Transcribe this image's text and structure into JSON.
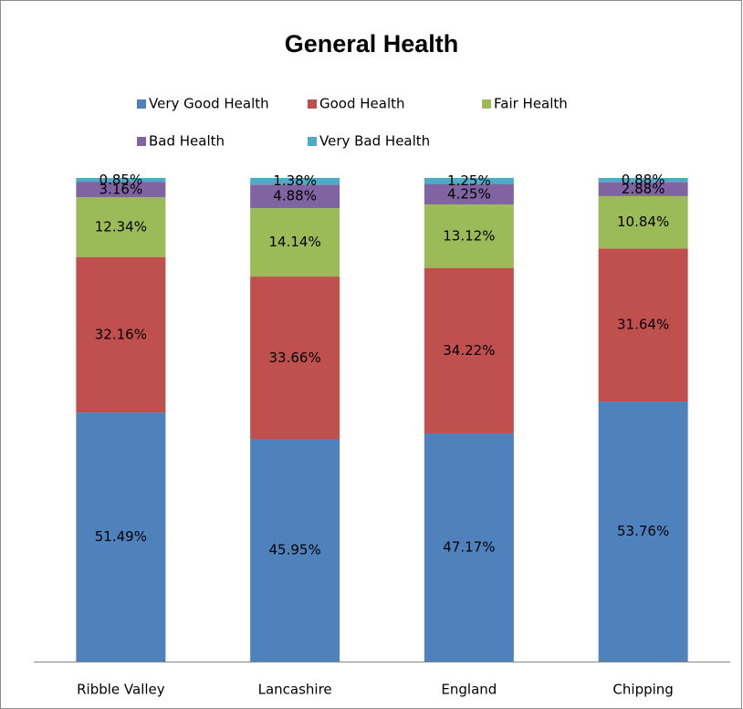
{
  "chart_data": {
    "type": "bar",
    "stacked": true,
    "title": "General Health",
    "categories": [
      "Ribble Valley",
      "Lancashire",
      "England",
      "Chipping"
    ],
    "series": [
      {
        "name": "Very Good Health",
        "color": "#4f81bd",
        "values": [
          51.49,
          45.95,
          47.17,
          53.76
        ],
        "value_labels": [
          "51.49%",
          "45.95%",
          "47.17%",
          "53.76%"
        ]
      },
      {
        "name": "Good Health",
        "color": "#c0504d",
        "values": [
          32.16,
          33.66,
          34.22,
          31.64
        ],
        "value_labels": [
          "32.16%",
          "33.66%",
          "34.22%",
          "31.64%"
        ]
      },
      {
        "name": "Fair Health",
        "color": "#9bbb59",
        "values": [
          12.34,
          14.14,
          13.12,
          10.84
        ],
        "value_labels": [
          "12.34%",
          "14.14%",
          "13.12%",
          "10.84%"
        ]
      },
      {
        "name": "Bad Health",
        "color": "#8064a2",
        "values": [
          3.16,
          4.88,
          4.25,
          2.88
        ],
        "value_labels": [
          "3.16%",
          "4.88%",
          "4.25%",
          "2.88%"
        ]
      },
      {
        "name": "Very Bad Health",
        "color": "#4bacc6",
        "values": [
          0.85,
          1.38,
          1.25,
          0.88
        ],
        "value_labels": [
          "0.85%",
          "1.38%",
          "1.25%",
          "0.88%"
        ]
      }
    ],
    "ylim": [
      0,
      100
    ],
    "legend": "top"
  }
}
